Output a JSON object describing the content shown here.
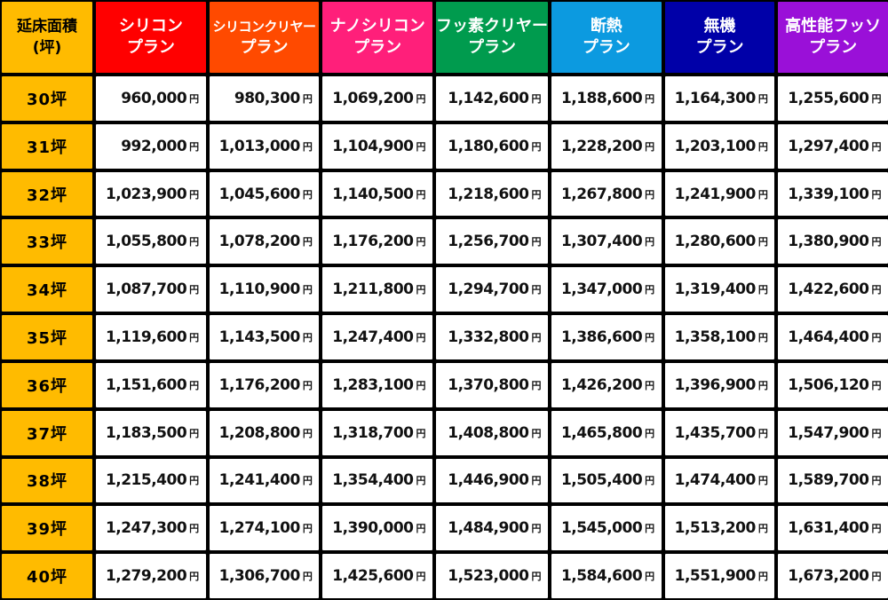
{
  "table": {
    "corner_line1": "延床面積",
    "corner_line2": "(坪)",
    "yen": "円",
    "columns": [
      {
        "line1": "シリコン",
        "line2": "プラン",
        "color": "#ff0000"
      },
      {
        "line1": "シリコンクリヤー",
        "line2": "プラン",
        "color": "#ff4a00"
      },
      {
        "line1": "ナノシリコン",
        "line2": "プラン",
        "color": "#ff1f7a"
      },
      {
        "line1": "フッ素クリヤー",
        "line2": "プラン",
        "color": "#009b4e"
      },
      {
        "line1": "断熱",
        "line2": "プラン",
        "color": "#0c9ae0"
      },
      {
        "line1": "無機",
        "line2": "プラン",
        "color": "#0000a8"
      },
      {
        "line1": "高性能フッソ",
        "line2": "プラン",
        "color": "#9a10d8"
      }
    ],
    "rows": [
      {
        "tsubo": "30坪",
        "prices": [
          "960,000",
          "980,300",
          "1,069,200",
          "1,142,600",
          "1,188,600",
          "1,164,300",
          "1,255,600"
        ]
      },
      {
        "tsubo": "31坪",
        "prices": [
          "992,000",
          "1,013,000",
          "1,104,900",
          "1,180,600",
          "1,228,200",
          "1,203,100",
          "1,297,400"
        ]
      },
      {
        "tsubo": "32坪",
        "prices": [
          "1,023,900",
          "1,045,600",
          "1,140,500",
          "1,218,600",
          "1,267,800",
          "1,241,900",
          "1,339,100"
        ]
      },
      {
        "tsubo": "33坪",
        "prices": [
          "1,055,800",
          "1,078,200",
          "1,176,200",
          "1,256,700",
          "1,307,400",
          "1,280,600",
          "1,380,900"
        ]
      },
      {
        "tsubo": "34坪",
        "prices": [
          "1,087,700",
          "1,110,900",
          "1,211,800",
          "1,294,700",
          "1,347,000",
          "1,319,400",
          "1,422,600"
        ]
      },
      {
        "tsubo": "35坪",
        "prices": [
          "1,119,600",
          "1,143,500",
          "1,247,400",
          "1,332,800",
          "1,386,600",
          "1,358,100",
          "1,464,400"
        ]
      },
      {
        "tsubo": "36坪",
        "prices": [
          "1,151,600",
          "1,176,200",
          "1,283,100",
          "1,370,800",
          "1,426,200",
          "1,396,900",
          "1,506,120"
        ]
      },
      {
        "tsubo": "37坪",
        "prices": [
          "1,183,500",
          "1,208,800",
          "1,318,700",
          "1,408,800",
          "1,465,800",
          "1,435,700",
          "1,547,900"
        ]
      },
      {
        "tsubo": "38坪",
        "prices": [
          "1,215,400",
          "1,241,400",
          "1,354,400",
          "1,446,900",
          "1,505,400",
          "1,474,400",
          "1,589,700"
        ]
      },
      {
        "tsubo": "39坪",
        "prices": [
          "1,247,300",
          "1,274,100",
          "1,390,000",
          "1,484,900",
          "1,545,000",
          "1,513,200",
          "1,631,400"
        ]
      },
      {
        "tsubo": "40坪",
        "prices": [
          "1,279,200",
          "1,306,700",
          "1,425,600",
          "1,523,000",
          "1,584,600",
          "1,551,900",
          "1,673,200"
        ]
      }
    ]
  }
}
